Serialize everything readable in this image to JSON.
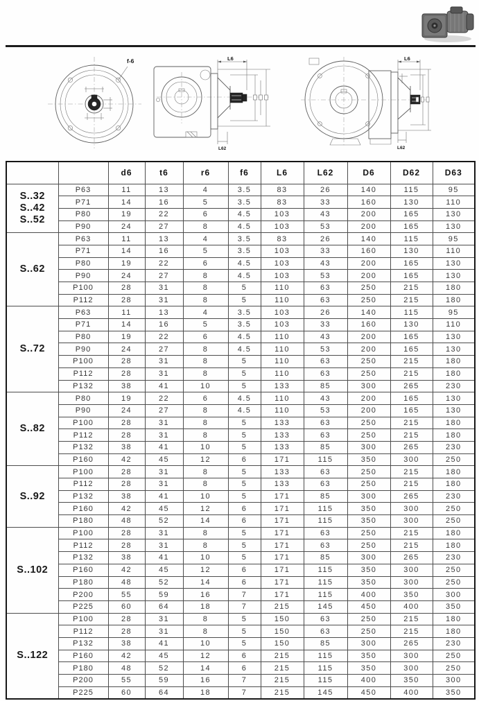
{
  "drawings": {
    "hole_label": "f-6",
    "length_label": "L6",
    "length2_label": "L62"
  },
  "table": {
    "columns": [
      "",
      "",
      "d6",
      "t6",
      "r6",
      "f6",
      "L6",
      "L62",
      "D6",
      "D62",
      "D63"
    ],
    "groups": [
      {
        "label_lines": [
          "S..32",
          "S..42",
          "S..52"
        ],
        "rows": [
          {
            "size": "P63",
            "values": [
              11,
              13,
              4,
              3.5,
              83,
              26,
              140,
              115,
              95
            ]
          },
          {
            "size": "P71",
            "values": [
              14,
              16,
              5,
              3.5,
              83,
              33,
              160,
              130,
              110
            ]
          },
          {
            "size": "P80",
            "values": [
              19,
              22,
              6,
              4.5,
              103,
              43,
              200,
              165,
              130
            ]
          },
          {
            "size": "P90",
            "values": [
              24,
              27,
              8,
              4.5,
              103,
              53,
              200,
              165,
              130
            ]
          }
        ]
      },
      {
        "label_lines": [
          "S..62"
        ],
        "rows": [
          {
            "size": "P63",
            "values": [
              11,
              13,
              4,
              3.5,
              83,
              26,
              140,
              115,
              95
            ]
          },
          {
            "size": "P71",
            "values": [
              14,
              16,
              5,
              3.5,
              103,
              33,
              160,
              130,
              110
            ]
          },
          {
            "size": "P80",
            "values": [
              19,
              22,
              6,
              4.5,
              103,
              43,
              200,
              165,
              130
            ]
          },
          {
            "size": "P90",
            "values": [
              24,
              27,
              8,
              4.5,
              103,
              53,
              200,
              165,
              130
            ]
          },
          {
            "size": "P100",
            "values": [
              28,
              31,
              8,
              5,
              110,
              63,
              250,
              215,
              180
            ]
          },
          {
            "size": "P112",
            "values": [
              28,
              31,
              8,
              5,
              110,
              63,
              250,
              215,
              180
            ]
          }
        ]
      },
      {
        "label_lines": [
          "S..72"
        ],
        "rows": [
          {
            "size": "P63",
            "values": [
              11,
              13,
              4,
              3.5,
              103,
              26,
              140,
              115,
              95
            ]
          },
          {
            "size": "P71",
            "values": [
              14,
              16,
              5,
              3.5,
              103,
              33,
              160,
              130,
              110
            ]
          },
          {
            "size": "P80",
            "values": [
              19,
              22,
              6,
              4.5,
              110,
              43,
              200,
              165,
              130
            ]
          },
          {
            "size": "P90",
            "values": [
              24,
              27,
              8,
              4.5,
              110,
              53,
              200,
              165,
              130
            ]
          },
          {
            "size": "P100",
            "values": [
              28,
              31,
              8,
              5,
              110,
              63,
              250,
              215,
              180
            ]
          },
          {
            "size": "P112",
            "values": [
              28,
              31,
              8,
              5,
              110,
              63,
              250,
              215,
              180
            ]
          },
          {
            "size": "P132",
            "values": [
              38,
              41,
              10,
              5,
              133,
              85,
              300,
              265,
              230
            ]
          }
        ]
      },
      {
        "label_lines": [
          "S..82"
        ],
        "rows": [
          {
            "size": "P80",
            "values": [
              19,
              22,
              6,
              4.5,
              110,
              43,
              200,
              165,
              130
            ]
          },
          {
            "size": "P90",
            "values": [
              24,
              27,
              8,
              4.5,
              110,
              53,
              200,
              165,
              130
            ]
          },
          {
            "size": "P100",
            "values": [
              28,
              31,
              8,
              5,
              133,
              63,
              250,
              215,
              180
            ]
          },
          {
            "size": "P112",
            "values": [
              28,
              31,
              8,
              5,
              133,
              63,
              250,
              215,
              180
            ]
          },
          {
            "size": "P132",
            "values": [
              38,
              41,
              10,
              5,
              133,
              85,
              300,
              265,
              230
            ]
          },
          {
            "size": "P160",
            "values": [
              42,
              45,
              12,
              6,
              171,
              115,
              350,
              300,
              250
            ]
          }
        ]
      },
      {
        "label_lines": [
          "S..92"
        ],
        "rows": [
          {
            "size": "P100",
            "values": [
              28,
              31,
              8,
              5,
              133,
              63,
              250,
              215,
              180
            ]
          },
          {
            "size": "P112",
            "values": [
              28,
              31,
              8,
              5,
              133,
              63,
              250,
              215,
              180
            ]
          },
          {
            "size": "P132",
            "values": [
              38,
              41,
              10,
              5,
              171,
              85,
              300,
              265,
              230
            ]
          },
          {
            "size": "P160",
            "values": [
              42,
              45,
              12,
              6,
              171,
              115,
              350,
              300,
              250
            ]
          },
          {
            "size": "P180",
            "values": [
              48,
              52,
              14,
              6,
              171,
              115,
              350,
              300,
              250
            ]
          }
        ]
      },
      {
        "label_lines": [
          "S..102"
        ],
        "rows": [
          {
            "size": "P100",
            "values": [
              28,
              31,
              8,
              5,
              171,
              63,
              250,
              215,
              180
            ]
          },
          {
            "size": "P112",
            "values": [
              28,
              31,
              8,
              5,
              171,
              63,
              250,
              215,
              180
            ]
          },
          {
            "size": "P132",
            "values": [
              38,
              41,
              10,
              5,
              171,
              85,
              300,
              265,
              230
            ]
          },
          {
            "size": "P160",
            "values": [
              42,
              45,
              12,
              6,
              171,
              115,
              350,
              300,
              250
            ]
          },
          {
            "size": "P180",
            "values": [
              48,
              52,
              14,
              6,
              171,
              115,
              350,
              300,
              250
            ]
          },
          {
            "size": "P200",
            "values": [
              55,
              59,
              16,
              7,
              171,
              115,
              400,
              350,
              300
            ]
          },
          {
            "size": "P225",
            "values": [
              60,
              64,
              18,
              7,
              215,
              145,
              450,
              400,
              350
            ]
          }
        ]
      },
      {
        "label_lines": [
          "S..122"
        ],
        "rows": [
          {
            "size": "P100",
            "values": [
              28,
              31,
              8,
              5,
              150,
              63,
              250,
              215,
              180
            ]
          },
          {
            "size": "P112",
            "values": [
              28,
              31,
              8,
              5,
              150,
              63,
              250,
              215,
              180
            ]
          },
          {
            "size": "P132",
            "values": [
              38,
              41,
              10,
              5,
              150,
              85,
              300,
              265,
              230
            ]
          },
          {
            "size": "P160",
            "values": [
              42,
              45,
              12,
              6,
              215,
              115,
              350,
              300,
              250
            ]
          },
          {
            "size": "P180",
            "values": [
              48,
              52,
              14,
              6,
              215,
              115,
              350,
              300,
              250
            ]
          },
          {
            "size": "P200",
            "values": [
              55,
              59,
              16,
              7,
              215,
              115,
              400,
              350,
              300
            ]
          },
          {
            "size": "P225",
            "values": [
              60,
              64,
              18,
              7,
              215,
              145,
              450,
              400,
              350
            ]
          }
        ]
      }
    ]
  }
}
